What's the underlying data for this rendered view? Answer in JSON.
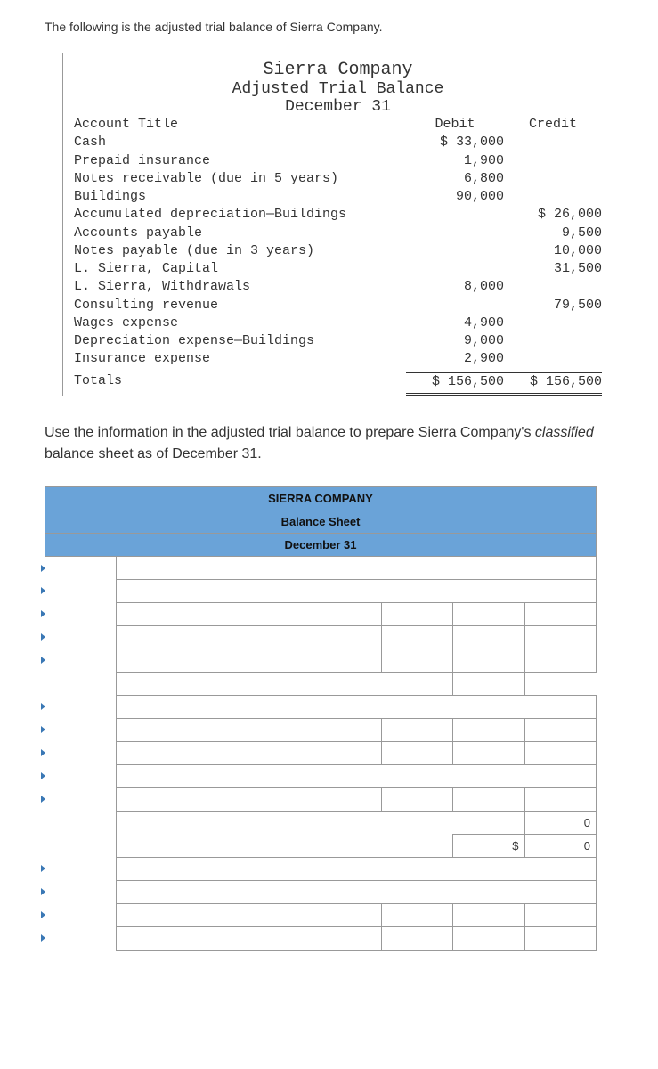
{
  "intro": "The following is the adjusted trial balance of Sierra Company.",
  "trial_balance": {
    "company": "Sierra Company",
    "title": "Adjusted Trial Balance",
    "date": "December 31",
    "col_account": "Account Title",
    "col_debit": "Debit",
    "col_credit": "Credit",
    "rows": [
      {
        "t": "Cash",
        "d": "$ 33,000",
        "c": ""
      },
      {
        "t": "Prepaid insurance",
        "d": "1,900",
        "c": ""
      },
      {
        "t": "Notes receivable (due in 5 years)",
        "d": "6,800",
        "c": ""
      },
      {
        "t": "Buildings",
        "d": "90,000",
        "c": ""
      },
      {
        "t": "Accumulated depreciation—Buildings",
        "d": "",
        "c": "$ 26,000"
      },
      {
        "t": "Accounts payable",
        "d": "",
        "c": "9,500"
      },
      {
        "t": "Notes payable (due in 3 years)",
        "d": "",
        "c": "10,000"
      },
      {
        "t": "L. Sierra, Capital",
        "d": "",
        "c": "31,500"
      },
      {
        "t": "L. Sierra, Withdrawals",
        "d": "8,000",
        "c": ""
      },
      {
        "t": "Consulting revenue",
        "d": "",
        "c": "79,500"
      },
      {
        "t": "Wages expense",
        "d": "4,900",
        "c": ""
      },
      {
        "t": "Depreciation expense—Buildings",
        "d": "9,000",
        "c": ""
      },
      {
        "t": "Insurance expense",
        "d": "2,900",
        "c": ""
      }
    ],
    "totals_label": "Totals",
    "totals_debit": "$ 156,500",
    "totals_credit": "$ 156,500"
  },
  "instruction_pre": "Use the information in the adjusted trial balance to prepare Sierra Company's ",
  "instruction_em": "classified",
  "instruction_post": " balance sheet as of December 31.",
  "balance_sheet": {
    "h1": "SIERRA COMPANY",
    "h2": "Balance Sheet",
    "h3": "December 31",
    "colors": {
      "header_bg": "#6aa3d8",
      "marker": "#3a78b5",
      "border": "#999999"
    },
    "prefill": {
      "dollar": "$",
      "zero1": "0",
      "zero2": "0"
    },
    "layout": [
      {
        "type": "full_marker"
      },
      {
        "type": "full_marker"
      },
      {
        "type": "four",
        "markers": [
          true,
          true,
          false,
          false
        ]
      },
      {
        "type": "four",
        "markers": [
          true,
          true,
          false,
          false
        ]
      },
      {
        "type": "four",
        "markers": [
          true,
          true,
          false,
          false
        ]
      },
      {
        "type": "four",
        "markers": [
          false,
          false,
          false,
          false
        ],
        "hide": [
          true,
          true,
          false,
          true
        ]
      },
      {
        "type": "full_marker"
      },
      {
        "type": "four",
        "markers": [
          true,
          true,
          false,
          false
        ]
      },
      {
        "type": "four",
        "markers": [
          true,
          false,
          false,
          false
        ]
      },
      {
        "type": "full_marker"
      },
      {
        "type": "four",
        "markers": [
          true,
          true,
          false,
          false
        ]
      },
      {
        "type": "four",
        "markers": [
          false,
          false,
          false,
          false
        ],
        "hide": [
          true,
          true,
          true,
          false
        ],
        "vals": [
          "",
          "",
          "",
          "0"
        ]
      },
      {
        "type": "four",
        "markers": [
          false,
          false,
          false,
          false
        ],
        "hide": [
          true,
          true,
          false,
          false
        ],
        "vals": [
          "",
          "",
          "$",
          "0"
        ]
      },
      {
        "type": "full_marker"
      },
      {
        "type": "full_marker"
      },
      {
        "type": "four",
        "markers": [
          true,
          true,
          false,
          false
        ]
      },
      {
        "type": "four",
        "markers": [
          true,
          true,
          false,
          false
        ]
      }
    ]
  }
}
